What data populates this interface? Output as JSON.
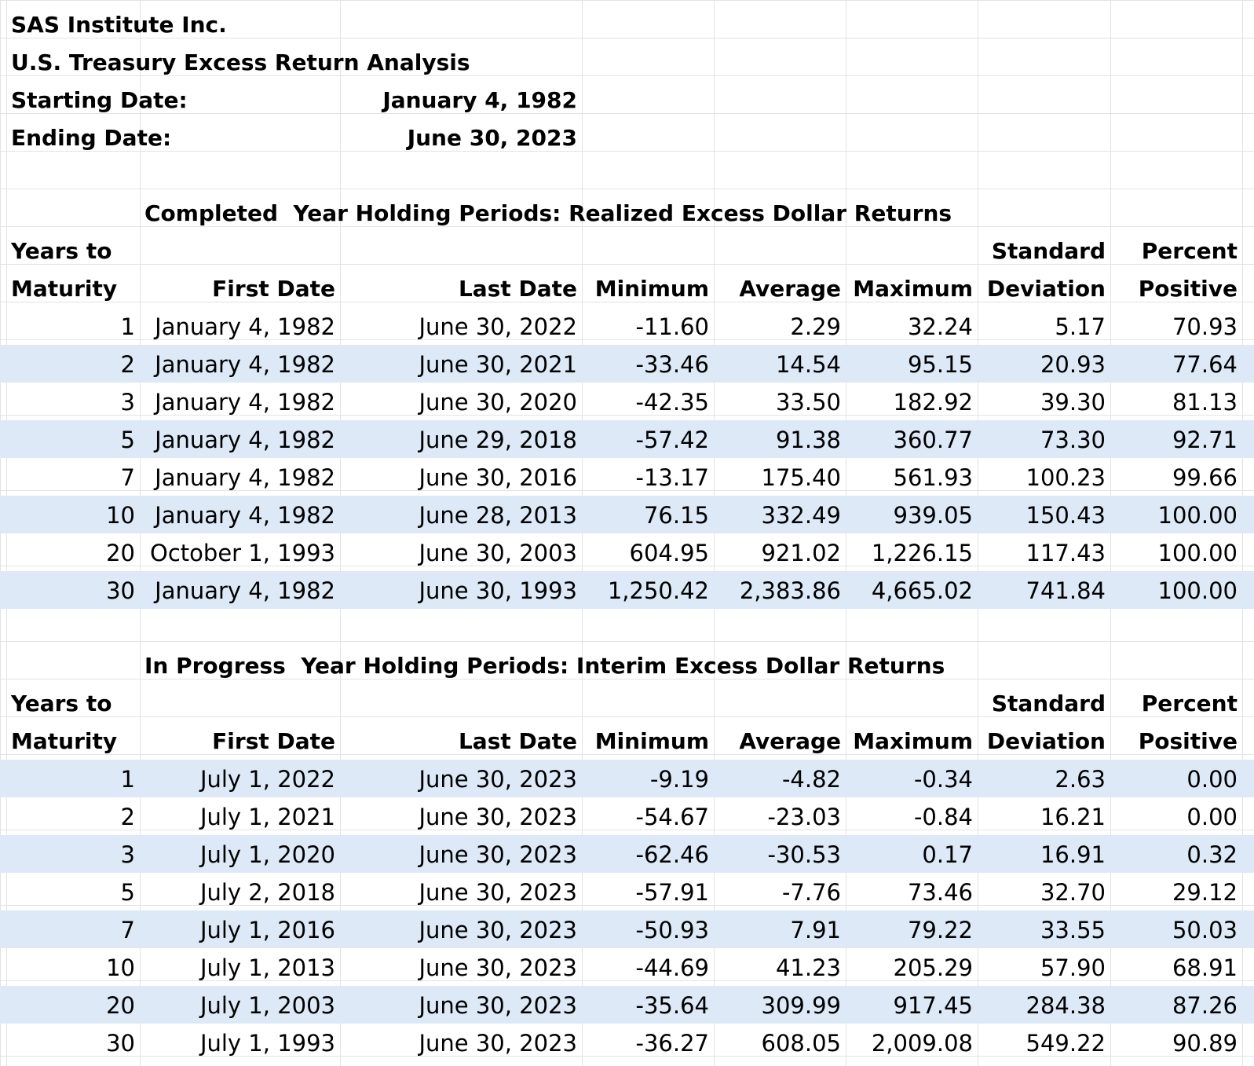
{
  "header": {
    "company": "SAS Institute Inc.",
    "title": "U.S. Treasury Excess Return Analysis",
    "start_label": "Starting Date:",
    "start_value": "January 4, 1982",
    "end_label": "Ending Date:",
    "end_value": "June 30, 2023"
  },
  "columns": {
    "h1_maturity": "Years to",
    "h2_maturity": "Maturity",
    "first_date": "First Date",
    "last_date": "Last Date",
    "minimum": "Minimum",
    "average": "Average",
    "maximum": "Maximum",
    "h1_std": "Standard",
    "h2_std": "Deviation",
    "h1_pct": "Percent",
    "h2_pct": "Positive"
  },
  "completed": {
    "title": "Completed  Year Holding Periods: Realized Excess Dollar Returns",
    "rows": [
      {
        "years": "1",
        "first": "January 4, 1982",
        "last": "June 30, 2022",
        "min": "-11.60",
        "avg": "2.29",
        "max": "32.24",
        "std": "5.17",
        "pct": "70.93"
      },
      {
        "years": "2",
        "first": "January 4, 1982",
        "last": "June 30, 2021",
        "min": "-33.46",
        "avg": "14.54",
        "max": "95.15",
        "std": "20.93",
        "pct": "77.64"
      },
      {
        "years": "3",
        "first": "January 4, 1982",
        "last": "June 30, 2020",
        "min": "-42.35",
        "avg": "33.50",
        "max": "182.92",
        "std": "39.30",
        "pct": "81.13"
      },
      {
        "years": "5",
        "first": "January 4, 1982",
        "last": "June 29, 2018",
        "min": "-57.42",
        "avg": "91.38",
        "max": "360.77",
        "std": "73.30",
        "pct": "92.71"
      },
      {
        "years": "7",
        "first": "January 4, 1982",
        "last": "June 30, 2016",
        "min": "-13.17",
        "avg": "175.40",
        "max": "561.93",
        "std": "100.23",
        "pct": "99.66"
      },
      {
        "years": "10",
        "first": "January 4, 1982",
        "last": "June 28, 2013",
        "min": "76.15",
        "avg": "332.49",
        "max": "939.05",
        "std": "150.43",
        "pct": "100.00"
      },
      {
        "years": "20",
        "first": "October 1, 1993",
        "last": "June 30, 2003",
        "min": "604.95",
        "avg": "921.02",
        "max": "1,226.15",
        "std": "117.43",
        "pct": "100.00"
      },
      {
        "years": "30",
        "first": "January 4, 1982",
        "last": "June 30, 1993",
        "min": "1,250.42",
        "avg": "2,383.86",
        "max": "4,665.02",
        "std": "741.84",
        "pct": "100.00"
      }
    ]
  },
  "in_progress": {
    "title": "In Progress  Year Holding Periods: Interim Excess Dollar Returns",
    "rows": [
      {
        "years": "1",
        "first": "July 1, 2022",
        "last": "June 30, 2023",
        "min": "-9.19",
        "avg": "-4.82",
        "max": "-0.34",
        "std": "2.63",
        "pct": "0.00"
      },
      {
        "years": "2",
        "first": "July 1, 2021",
        "last": "June 30, 2023",
        "min": "-54.67",
        "avg": "-23.03",
        "max": "-0.84",
        "std": "16.21",
        "pct": "0.00"
      },
      {
        "years": "3",
        "first": "July 1, 2020",
        "last": "June 30, 2023",
        "min": "-62.46",
        "avg": "-30.53",
        "max": "0.17",
        "std": "16.91",
        "pct": "0.32"
      },
      {
        "years": "5",
        "first": "July 2, 2018",
        "last": "June 30, 2023",
        "min": "-57.91",
        "avg": "-7.76",
        "max": "73.46",
        "std": "32.70",
        "pct": "29.12"
      },
      {
        "years": "7",
        "first": "July 1, 2016",
        "last": "June 30, 2023",
        "min": "-50.93",
        "avg": "7.91",
        "max": "79.22",
        "std": "33.55",
        "pct": "50.03"
      },
      {
        "years": "10",
        "first": "July 1, 2013",
        "last": "June 30, 2023",
        "min": "-44.69",
        "avg": "41.23",
        "max": "205.29",
        "std": "57.90",
        "pct": "68.91"
      },
      {
        "years": "20",
        "first": "July 1, 2003",
        "last": "June 30, 2023",
        "min": "-35.64",
        "avg": "309.99",
        "max": "917.45",
        "std": "284.38",
        "pct": "87.26"
      },
      {
        "years": "30",
        "first": "July 1, 1993",
        "last": "June 30, 2023",
        "min": "-36.27",
        "avg": "608.05",
        "max": "2,009.08",
        "std": "549.22",
        "pct": "90.89"
      }
    ]
  },
  "colors": {
    "band": "#dde9f7",
    "gridline": "#e3e3e3"
  }
}
